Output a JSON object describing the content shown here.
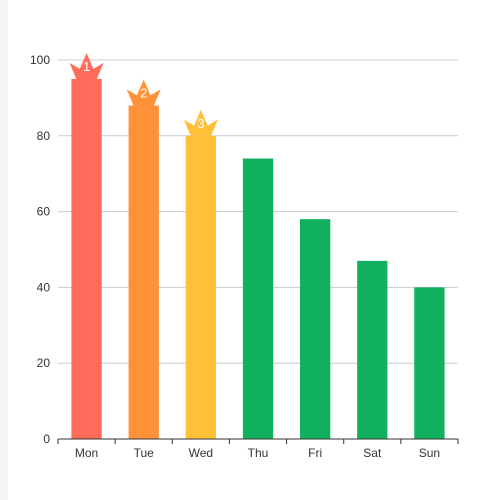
{
  "chart_data": {
    "type": "bar",
    "categories": [
      "Mon",
      "Tue",
      "Wed",
      "Thu",
      "Fri",
      "Sat",
      "Sun"
    ],
    "values": [
      95,
      88,
      80,
      74,
      58,
      47,
      40
    ],
    "ylim": [
      0,
      100
    ],
    "yticks": [
      0,
      20,
      40,
      60,
      80,
      100
    ],
    "grid": true,
    "colors": {
      "rank1": "#ff6d5a",
      "rank2": "#ff9238",
      "rank3": "#ffc038",
      "default": "#10b05e",
      "grid": "#cccccc",
      "axis": "#333333"
    },
    "markers": [
      {
        "category": "Mon",
        "label": "1"
      },
      {
        "category": "Tue",
        "label": "2"
      },
      {
        "category": "Wed",
        "label": "3"
      }
    ]
  }
}
